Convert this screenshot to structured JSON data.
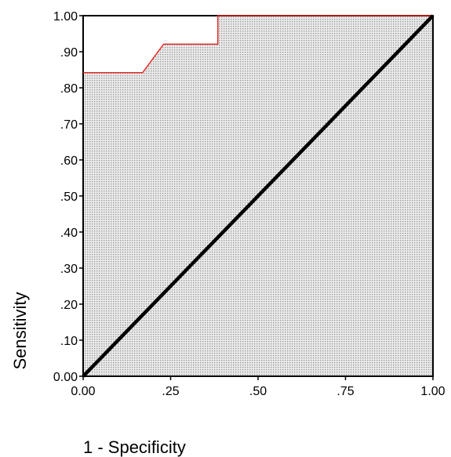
{
  "chart_data": {
    "type": "line",
    "title": "",
    "xlabel": "1 - Specificity",
    "ylabel": "Sensitivity",
    "xlim": [
      0,
      1
    ],
    "ylim": [
      0,
      1
    ],
    "grid": false,
    "x_tick_labels": [
      "0.00",
      ".25",
      ".50",
      ".75",
      "1.00"
    ],
    "x_tick_values": [
      0,
      0.25,
      0.5,
      0.75,
      1.0
    ],
    "y_tick_labels": [
      "0.00",
      ".10",
      ".20",
      ".30",
      ".40",
      ".50",
      ".60",
      ".70",
      ".80",
      ".90",
      "1.00"
    ],
    "y_tick_values": [
      0,
      0.1,
      0.2,
      0.3,
      0.4,
      0.5,
      0.6,
      0.7,
      0.8,
      0.9,
      1.0
    ],
    "series": [
      {
        "color": "#e8201c",
        "points": [
          [
            0,
            0.842
          ],
          [
            0.17,
            0.842
          ],
          [
            0.23,
            0.921
          ],
          [
            0.385,
            0.921
          ],
          [
            0.385,
            1.0
          ],
          [
            1.0,
            1.0
          ]
        ]
      },
      {
        "color": "#000000",
        "points": [
          [
            0,
            0
          ],
          [
            1,
            1
          ]
        ]
      }
    ],
    "area_fill": "#cfcfcf"
  }
}
